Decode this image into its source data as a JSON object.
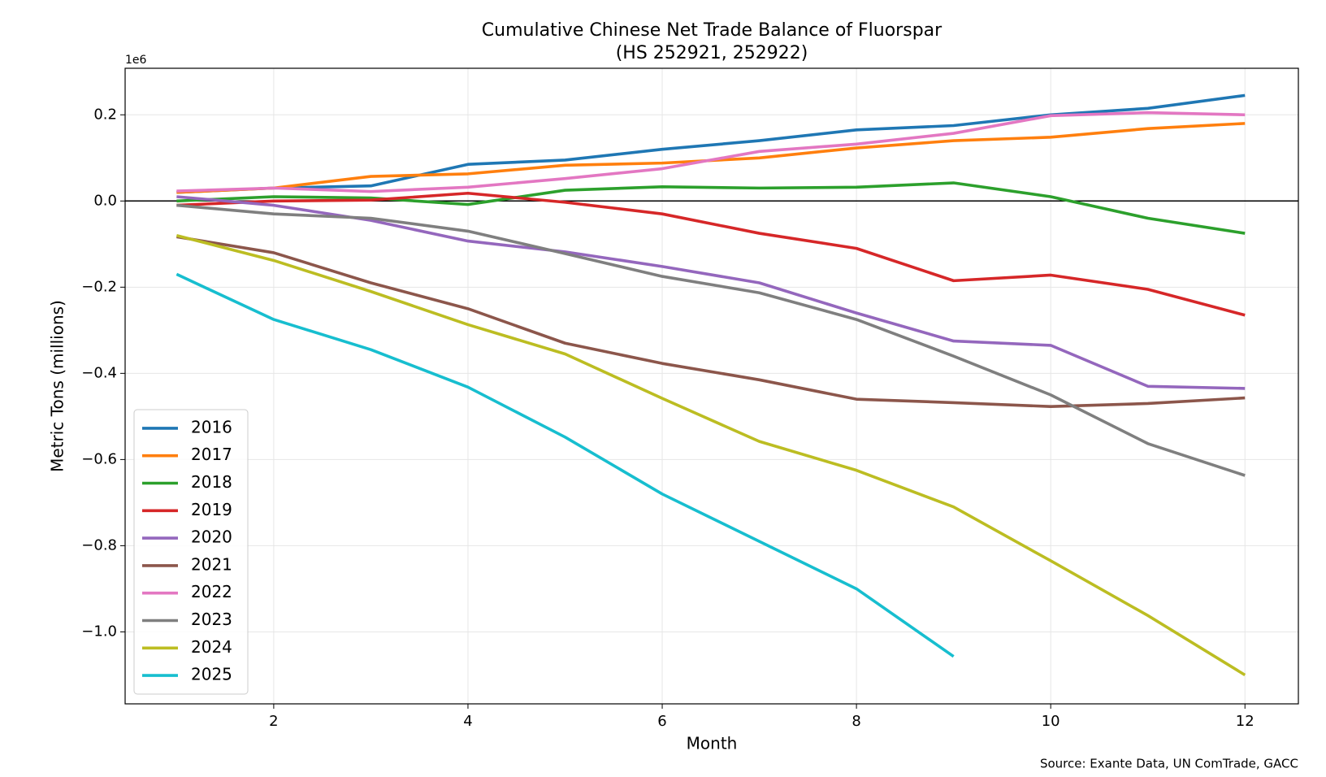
{
  "chart_data": {
    "type": "line",
    "title": "Cumulative Chinese Net Trade Balance of Fluorspar",
    "subtitle": "(HS 252921, 252922)",
    "x_label": "Month",
    "y_label": "Metric Tons (millions)",
    "y_offset_label": "1e6",
    "source": "Source: Exante Data, UN ComTrade, GACC",
    "x": [
      1,
      2,
      3,
      4,
      5,
      6,
      7,
      8,
      9,
      10,
      11,
      12
    ],
    "series": [
      {
        "name": "2016",
        "color": "#1f77b4",
        "values": [
          0.02,
          0.03,
          0.035,
          0.085,
          0.095,
          0.12,
          0.14,
          0.165,
          0.175,
          0.2,
          0.215,
          0.245
        ]
      },
      {
        "name": "2017",
        "color": "#ff7f0e",
        "values": [
          0.02,
          0.03,
          0.057,
          0.063,
          0.083,
          0.088,
          0.1,
          0.123,
          0.14,
          0.148,
          0.168,
          0.18
        ]
      },
      {
        "name": "2018",
        "color": "#2ca02c",
        "values": [
          0.0,
          0.01,
          0.007,
          -0.008,
          0.025,
          0.033,
          0.03,
          0.032,
          0.042,
          0.01,
          -0.04,
          -0.075
        ]
      },
      {
        "name": "2019",
        "color": "#d62728",
        "values": [
          -0.01,
          0.0,
          0.002,
          0.018,
          -0.003,
          -0.03,
          -0.075,
          -0.11,
          -0.185,
          -0.172,
          -0.205,
          -0.265
        ]
      },
      {
        "name": "2020",
        "color": "#9467bd",
        "values": [
          0.01,
          -0.01,
          -0.045,
          -0.093,
          -0.118,
          -0.152,
          -0.19,
          -0.26,
          -0.325,
          -0.335,
          -0.43,
          -0.435
        ]
      },
      {
        "name": "2021",
        "color": "#8c564b",
        "values": [
          -0.083,
          -0.12,
          -0.19,
          -0.25,
          -0.33,
          -0.377,
          -0.415,
          -0.46,
          -0.468,
          -0.477,
          -0.47,
          -0.457
        ]
      },
      {
        "name": "2022",
        "color": "#e377c2",
        "values": [
          0.023,
          0.03,
          0.022,
          0.032,
          0.052,
          0.075,
          0.115,
          0.132,
          0.157,
          0.198,
          0.205,
          0.2
        ]
      },
      {
        "name": "2023",
        "color": "#7f7f7f",
        "values": [
          -0.01,
          -0.03,
          -0.04,
          -0.07,
          -0.122,
          -0.175,
          -0.213,
          -0.275,
          -0.36,
          -0.45,
          -0.563,
          -0.637
        ]
      },
      {
        "name": "2024",
        "color": "#bcbd22",
        "values": [
          -0.08,
          -0.138,
          -0.21,
          -0.287,
          -0.355,
          -0.458,
          -0.558,
          -0.625,
          -0.71,
          -0.835,
          -0.962,
          -1.1
        ]
      },
      {
        "name": "2025",
        "color": "#17becf",
        "values": [
          -0.17,
          -0.275,
          -0.345,
          -0.432,
          -0.548,
          -0.68,
          -0.79,
          -0.9,
          -1.057,
          null,
          null,
          null
        ]
      }
    ],
    "xlim": [
      0.47,
      12.55
    ],
    "ylim": [
      -1.167,
      0.308
    ],
    "xticks": [
      2,
      4,
      6,
      8,
      10,
      12
    ],
    "yticks": [
      {
        "value": -1.0,
        "label": "−1.0"
      },
      {
        "value": -0.8,
        "label": "−0.8"
      },
      {
        "value": -0.6,
        "label": "−0.6"
      },
      {
        "value": -0.4,
        "label": "−0.4"
      },
      {
        "value": -0.2,
        "label": "−0.2"
      },
      {
        "value": 0,
        "label": "0.0"
      },
      0.2
    ],
    "grid": true,
    "zero_line": true,
    "legend": "lower left"
  }
}
